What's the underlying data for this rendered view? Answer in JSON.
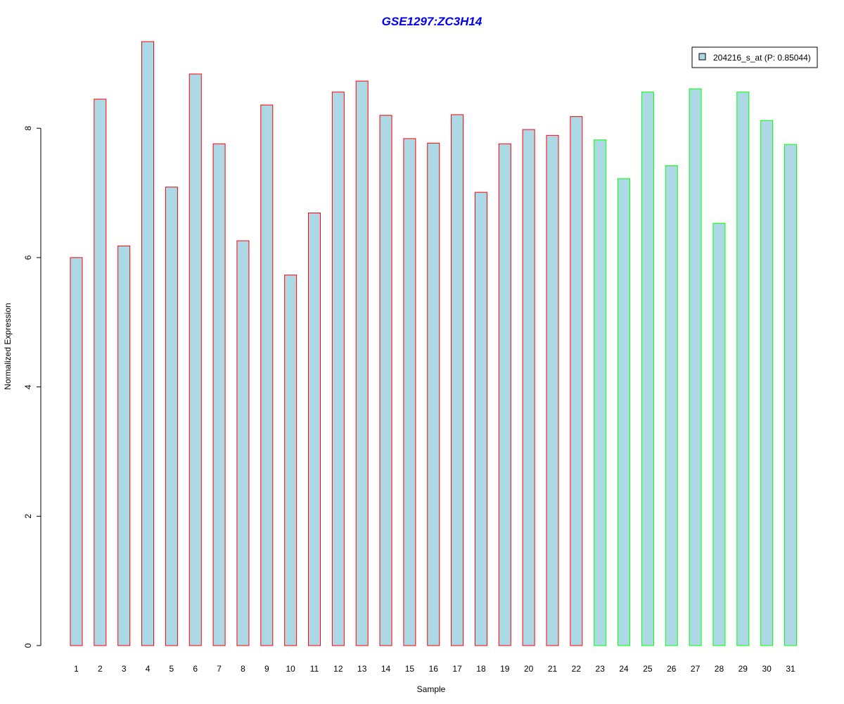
{
  "chart_data": {
    "type": "bar",
    "title": "GSE1297:ZC3H14",
    "xlabel": "Sample",
    "ylabel": "Normalized Expression",
    "categories": [
      "1",
      "2",
      "3",
      "4",
      "5",
      "6",
      "7",
      "8",
      "9",
      "10",
      "11",
      "12",
      "13",
      "14",
      "15",
      "16",
      "17",
      "18",
      "19",
      "20",
      "21",
      "22",
      "23",
      "24",
      "25",
      "26",
      "27",
      "28",
      "29",
      "30",
      "31"
    ],
    "series": [
      {
        "name": "204216_s_at (P: 0.85044)",
        "values": [
          6.0,
          8.45,
          6.18,
          9.34,
          7.09,
          8.84,
          7.76,
          6.26,
          8.36,
          5.73,
          6.69,
          8.56,
          8.73,
          8.2,
          7.84,
          7.77,
          8.21,
          7.01,
          7.76,
          7.98,
          7.89,
          8.18,
          7.82,
          7.22,
          8.56,
          7.42,
          8.61,
          6.53,
          8.56,
          8.12,
          7.75
        ]
      }
    ],
    "groups": [
      1,
      1,
      1,
      1,
      1,
      1,
      1,
      1,
      1,
      1,
      1,
      1,
      1,
      1,
      1,
      1,
      1,
      1,
      1,
      1,
      1,
      1,
      2,
      2,
      2,
      2,
      2,
      2,
      2,
      2,
      2
    ],
    "ylim": [
      0,
      9.4
    ],
    "yticks": [
      0,
      2,
      4,
      6,
      8
    ],
    "grid": false,
    "legend_position": "top-right",
    "colors": {
      "bar_fill": "#add8e6",
      "group1_border": "#ff0000",
      "group2_border": "#00ff00",
      "title": "#0000ee"
    }
  }
}
